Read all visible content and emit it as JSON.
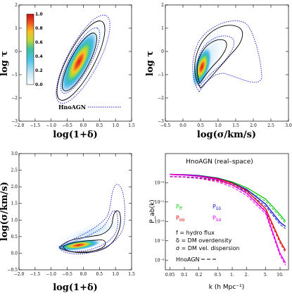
{
  "chart_data": [
    {
      "type": "heatmap",
      "panel": "top-left",
      "xlabel": "log(1+δ)",
      "ylabel": "log τ",
      "xlim": [
        -2.0,
        1.5
      ],
      "ylim": [
        -3,
        2
      ],
      "xticks": [
        "−2.0",
        "−1.5",
        "−1.0",
        "−0.5",
        "0.0",
        "0.5",
        "1.0",
        "1.5"
      ],
      "yticks": [
        "−3",
        "−2",
        "−1",
        "0",
        "1",
        "2"
      ],
      "colorbar": {
        "ticks": [
          "0.0",
          "0.2",
          "0.4",
          "0.6",
          "0.8",
          "1.0"
        ],
        "range": [
          0,
          1
        ]
      },
      "legend": {
        "label": "HnoAGN",
        "placement": "bottom-right"
      },
      "peak": {
        "x": -0.2,
        "y": 0.3
      }
    },
    {
      "type": "heatmap",
      "panel": "top-right",
      "xlabel": "log(σ/km/s)",
      "ylabel": "log τ",
      "xlim": [
        -0.5,
        3.0
      ],
      "ylim": [
        -3,
        2
      ],
      "xticks": [
        "−0.5",
        "0.0",
        "0.5",
        "1.0",
        "1.5",
        "2.0",
        "2.5",
        "3.0"
      ],
      "yticks": [
        "−3",
        "−2",
        "−1",
        "0",
        "1",
        "2"
      ],
      "peak": {
        "x": 0.85,
        "y": -0.9
      }
    },
    {
      "type": "heatmap",
      "panel": "bottom-left",
      "xlabel": "log(1+δ)",
      "ylabel": "log(σ/km/s)",
      "xlim": [
        -2.0,
        1.5
      ],
      "ylim": [
        -0.5,
        3.0
      ],
      "xticks": [
        "−2.0",
        "−1.5",
        "−1.0",
        "−0.5",
        "0.0",
        "0.5",
        "1.0",
        "1.5"
      ],
      "yticks": [
        "−0.5",
        "0.0",
        "0.5",
        "1.0",
        "1.5",
        "2.0",
        "2.5",
        "3.0"
      ],
      "peak": {
        "x": -0.3,
        "y": 0.8
      }
    },
    {
      "type": "line",
      "panel": "bottom-right",
      "title": "HnoAGN (real–space)",
      "xlabel": "k (h Mpc⁻¹)",
      "ylabel": "P_ab(k)",
      "xscale": "log",
      "yscale": "log",
      "xlim": [
        0.04,
        15
      ],
      "ylim": [
        1e-05,
        10000000
      ],
      "xticks": [
        "0.05",
        "0.1",
        "0.2",
        "0.5",
        "1.",
        "2.",
        "5.",
        "10."
      ],
      "yticks": [
        "10⁻⁴",
        "10⁻²",
        "10⁺⁰",
        "10⁺²",
        "10⁺⁴"
      ],
      "series": [
        {
          "name": "P_ff",
          "color": "#22cc22",
          "k": [
            0.05,
            0.1,
            0.2,
            0.5,
            1,
            2,
            5,
            10,
            13
          ],
          "p": [
            70000,
            65000,
            55000,
            30000,
            12000,
            3000,
            200,
            5,
            1
          ]
        },
        {
          "name": "P_δδ",
          "color": "#1a1acc",
          "k": [
            0.05,
            0.1,
            0.2,
            0.5,
            1,
            2,
            5,
            10,
            13
          ],
          "p": [
            72000,
            66000,
            54000,
            28000,
            10000,
            2000,
            60,
            0.8,
            0.3
          ]
        },
        {
          "name": "P_σσ",
          "color": "#dd1111",
          "k": [
            0.05,
            0.1,
            0.2,
            0.5,
            1,
            2,
            5,
            10,
            13
          ],
          "p": [
            70000,
            62000,
            48000,
            25000,
            9000,
            1500,
            20,
            0.01,
            0.001
          ]
        },
        {
          "name": "P_δσ",
          "color": "#ee00ee",
          "k": [
            0.05,
            0.1,
            0.2,
            0.5,
            1,
            2,
            5,
            10,
            13
          ],
          "p": [
            68000,
            60000,
            45000,
            20000,
            6000,
            800,
            10,
            0.0005,
            5e-05
          ]
        }
      ],
      "legend_notes": [
        "f = hydro flux",
        "δ = DM overdensity",
        "σ = DM vel. dispersion"
      ],
      "dashed_label": "HnoAGN"
    }
  ]
}
